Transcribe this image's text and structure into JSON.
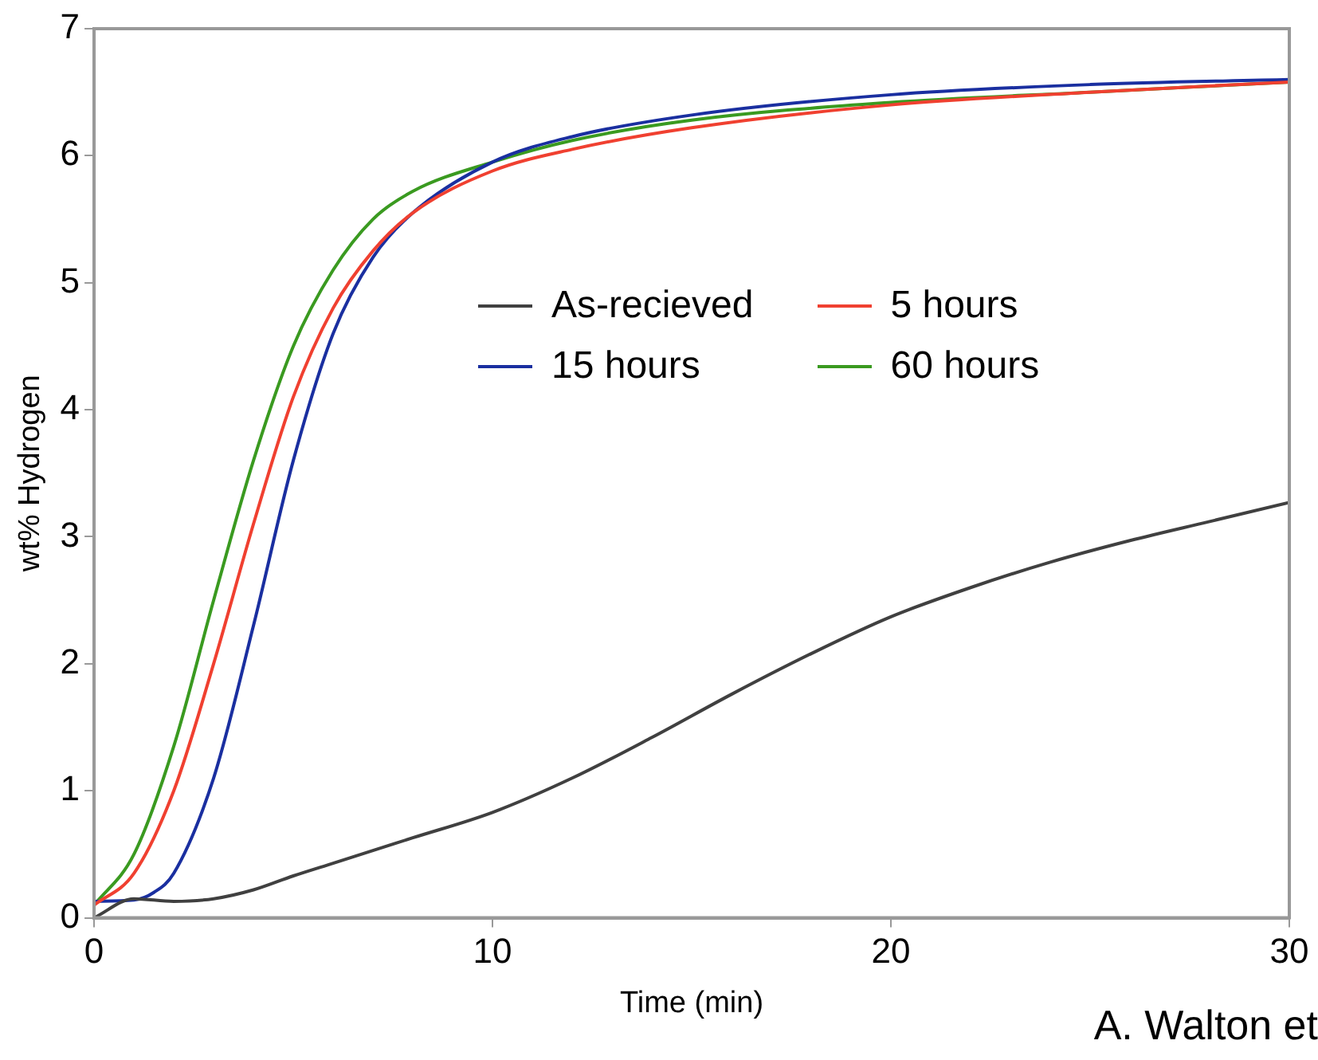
{
  "chart_data": {
    "type": "line",
    "xlabel": "Time (min)",
    "ylabel": "wt% Hydrogen",
    "xlim": [
      0,
      30
    ],
    "xticks": [
      0,
      10,
      20,
      30
    ],
    "ylim": [
      0,
      7
    ],
    "yticks": [
      0,
      1,
      2,
      3,
      4,
      5,
      6,
      7
    ],
    "grid": false,
    "legend": "right",
    "marker": "none",
    "line_style": "solid",
    "annotations": [
      "A. Walton et"
    ],
    "series": [
      {
        "name": "As-recieved",
        "color": "#404040",
        "x": [
          0,
          1,
          2,
          3,
          4,
          5,
          6,
          7,
          8,
          10,
          12,
          14,
          16,
          18,
          20,
          22,
          24,
          26,
          28,
          30
        ],
        "values": [
          0,
          0.15,
          0.13,
          0.15,
          0.22,
          0.33,
          0.43,
          0.53,
          0.63,
          0.83,
          1.1,
          1.42,
          1.76,
          2.08,
          2.37,
          2.6,
          2.8,
          2.97,
          3.12,
          3.27
        ]
      },
      {
        "name": "5 hours",
        "color": "#f04030",
        "x": [
          0,
          1,
          2,
          3,
          4,
          5,
          6,
          7,
          8,
          10,
          12,
          15,
          20,
          25,
          30
        ],
        "values": [
          0.1,
          0.35,
          1.0,
          2.0,
          3.1,
          4.1,
          4.8,
          5.25,
          5.55,
          5.88,
          6.05,
          6.22,
          6.4,
          6.5,
          6.58
        ]
      },
      {
        "name": "15 hours",
        "color": "#1a2fa0",
        "x": [
          0,
          1,
          1.5,
          2,
          3,
          4,
          5,
          6,
          7,
          8,
          10,
          12,
          15,
          20,
          25,
          30
        ],
        "values": [
          0.13,
          0.14,
          0.2,
          0.35,
          1.1,
          2.3,
          3.6,
          4.6,
          5.2,
          5.55,
          5.95,
          6.15,
          6.32,
          6.48,
          6.56,
          6.6
        ]
      },
      {
        "name": "60 hours",
        "color": "#3a9a20",
        "x": [
          0,
          1,
          2,
          3,
          4,
          5,
          6,
          7,
          8,
          10,
          12,
          15,
          20,
          25,
          30
        ],
        "values": [
          0.1,
          0.5,
          1.35,
          2.5,
          3.6,
          4.5,
          5.1,
          5.5,
          5.72,
          5.95,
          6.12,
          6.28,
          6.42,
          6.5,
          6.58
        ]
      }
    ]
  }
}
